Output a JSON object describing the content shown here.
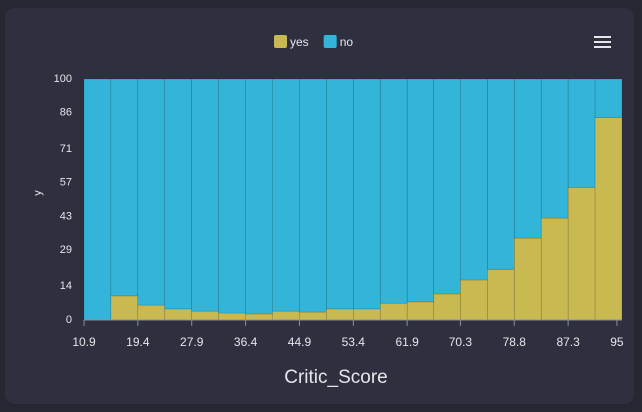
{
  "chart_data": {
    "type": "histogram",
    "x_label": "Critic_Score",
    "y_label": "y",
    "bins": [
      10.9,
      15.15,
      19.4,
      23.65,
      27.9,
      32.15,
      36.4,
      40.65,
      44.9,
      49.15,
      53.4,
      57.65,
      61.9,
      66.1,
      70.3,
      74.55,
      78.8,
      83.05,
      87.3,
      91.55,
      95.8
    ],
    "series": [
      {
        "name": "yes",
        "color": "#c9b951",
        "values": [
          0,
          10,
          6.2,
          4.6,
          3.7,
          2.9,
          2.5,
          3.7,
          3.3,
          4.6,
          4.6,
          7,
          7.5,
          10.8,
          16.6,
          21,
          34,
          42.3,
          55,
          84
        ]
      },
      {
        "name": "no",
        "color": "#33b5d9",
        "values": [
          100,
          90,
          93.8,
          95.4,
          96.3,
          97.1,
          97.5,
          96.3,
          96.7,
          95.4,
          95.4,
          93,
          92.5,
          89.2,
          83.4,
          79,
          66,
          57.7,
          45,
          16
        ]
      }
    ],
    "xlim": [
      10.9,
      95.8
    ],
    "xticks": [
      10.9,
      19.4,
      27.9,
      36.4,
      44.9,
      53.4,
      61.9,
      70.3,
      78.8,
      87.3,
      95
    ],
    "ylim": [
      0,
      100
    ],
    "yticks": [
      0,
      14,
      29,
      43,
      57,
      71,
      86,
      100
    ],
    "legend": "top"
  }
}
